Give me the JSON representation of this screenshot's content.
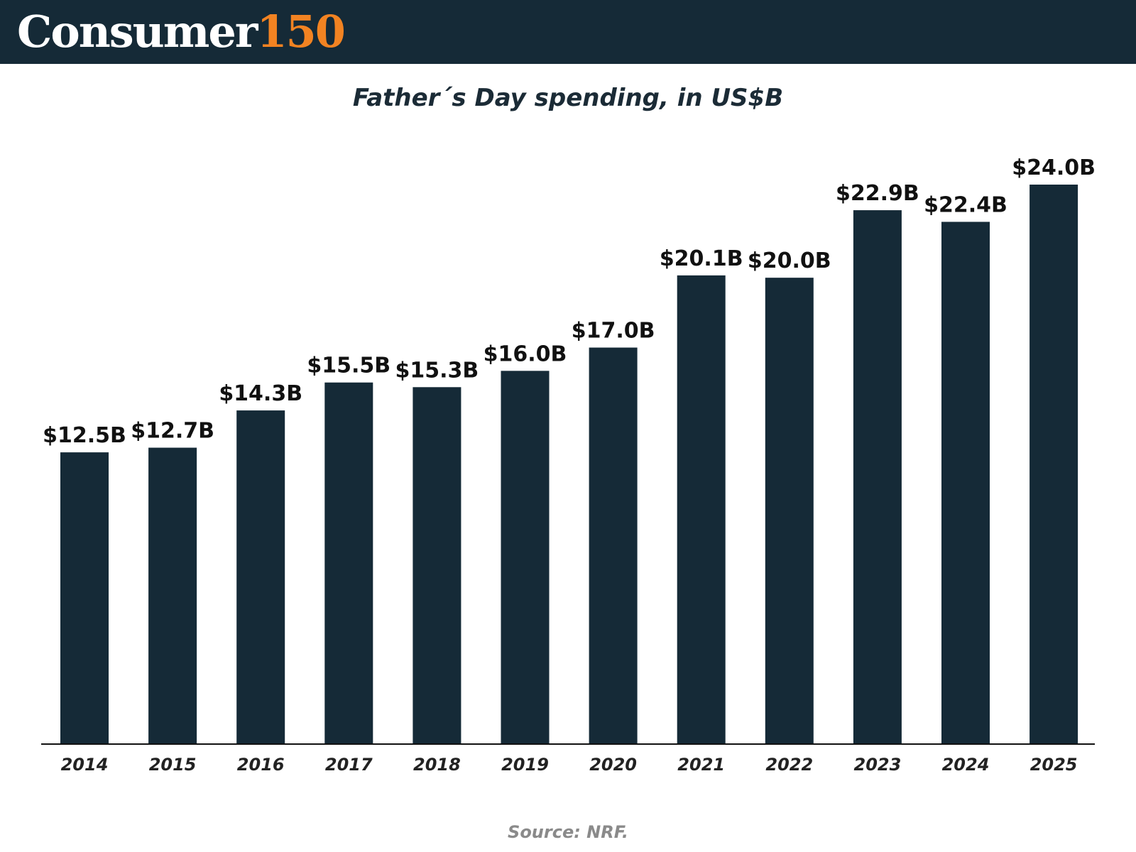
{
  "brand": {
    "name": "Consumer",
    "number": "150"
  },
  "colors": {
    "header_bg": "#152a37",
    "brand_accent": "#f28322",
    "bar": "#152a37",
    "text": "#111111"
  },
  "source": "Source: NRF.",
  "chart_data": {
    "type": "bar",
    "title": "Father´s Day spending, in US$B",
    "xlabel": "",
    "ylabel": "",
    "ylim": [
      0,
      24
    ],
    "grid": false,
    "categories": [
      "2014",
      "2015",
      "2016",
      "2017",
      "2018",
      "2019",
      "2020",
      "2021",
      "2022",
      "2023",
      "2024",
      "2025"
    ],
    "values": [
      12.5,
      12.7,
      14.3,
      15.5,
      15.3,
      16.0,
      17.0,
      20.1,
      20.0,
      22.9,
      22.4,
      24.0
    ],
    "data_labels": [
      "$12.5B",
      "$12.7B",
      "$14.3B",
      "$15.5B",
      "$15.3B",
      "$16.0B",
      "$17.0B",
      "$20.1B",
      "$20.0B",
      "$22.9B",
      "$22.4B",
      "$24.0B"
    ]
  }
}
